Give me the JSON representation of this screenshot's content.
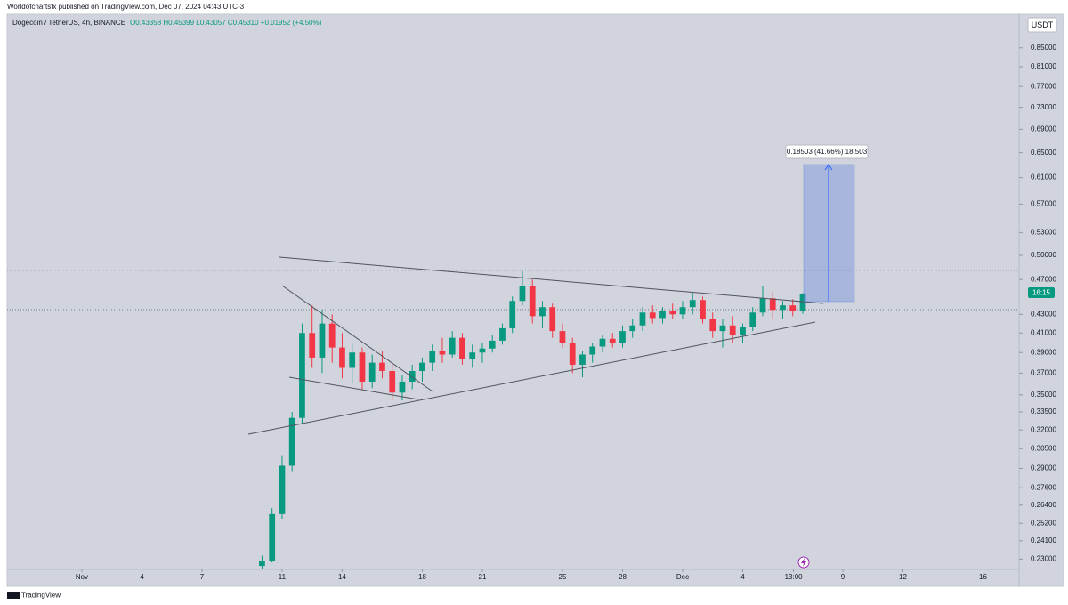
{
  "header": {
    "text": "Worldofchartsfx published on TradingView.com, Dec 07, 2024 04:43 UTC-3"
  },
  "footer": {
    "text": "TradingView"
  },
  "chart_data": {
    "type": "candlestick",
    "title": "Dogecoin / TetherUS, 4h, BINANCE",
    "subtitle": "O0.43358 H0.45399 L0.43057 C0.45310 +0.01952 (+4.50%)",
    "currency": "USDT",
    "countdown": "16:15",
    "annotations": [
      "0.18503 (41.66%) 18,503"
    ],
    "log_scale": true,
    "up_color": "#089981",
    "down_color": "#f23645",
    "xlim": [
      -2.73,
      47.8
    ],
    "ylim": [
      0.224,
      0.922
    ],
    "xticks": [
      {
        "value": 1,
        "label": "Nov"
      },
      4,
      7,
      11,
      14,
      18,
      21,
      25,
      28,
      {
        "value": 31,
        "label": "Dec"
      },
      {
        "value": 34,
        "label": "4"
      },
      {
        "value": 36.54,
        "label": "13:00"
      },
      {
        "value": 39,
        "label": "9"
      },
      {
        "value": 42,
        "label": "12"
      },
      {
        "value": 46,
        "label": "16"
      }
    ],
    "yticks": [
      {
        "value": 0.85,
        "label": "0.85000"
      },
      {
        "value": 0.81,
        "label": "0.81000"
      },
      {
        "value": 0.77,
        "label": "0.77000"
      },
      {
        "value": 0.73,
        "label": "0.73000"
      },
      {
        "value": 0.69,
        "label": "0.69000"
      },
      {
        "value": 0.65,
        "label": "0.65000"
      },
      {
        "value": 0.61,
        "label": "0.61000"
      },
      {
        "value": 0.57,
        "label": "0.57000"
      },
      {
        "value": 0.53,
        "label": "0.53000"
      },
      {
        "value": 0.5,
        "label": "0.50000"
      },
      {
        "value": 0.47,
        "label": "0.47000"
      },
      {
        "value": 0.43,
        "label": "0.43000"
      },
      {
        "value": 0.41,
        "label": "0.41000"
      },
      {
        "value": 0.39,
        "label": "0.39000"
      },
      {
        "value": 0.37,
        "label": "0.37000"
      },
      {
        "value": 0.35,
        "label": "0.35000"
      },
      {
        "value": 0.335,
        "label": "0.33500"
      },
      {
        "value": 0.32,
        "label": "0.32000"
      },
      {
        "value": 0.305,
        "label": "0.30500"
      },
      {
        "value": 0.29,
        "label": "0.29000"
      },
      {
        "value": 0.276,
        "label": "0.27600"
      },
      {
        "value": 0.264,
        "label": "0.26400"
      },
      {
        "value": 0.252,
        "label": "0.25200"
      },
      {
        "value": 0.241,
        "label": "0.24100"
      },
      {
        "value": 0.23,
        "label": "0.23000"
      }
    ],
    "x": [
      10,
      10.5,
      11,
      11.5,
      12,
      12.5,
      13,
      13.5,
      14,
      14.5,
      15,
      15.5,
      16,
      16.5,
      17,
      17.5,
      18,
      18.5,
      19,
      19.5,
      20,
      20.5,
      21,
      21.5,
      22,
      22.5,
      23,
      23.5,
      24,
      24.5,
      25,
      25.5,
      26,
      26.5,
      27,
      27.5,
      28,
      28.5,
      29,
      29.5,
      30,
      30.5,
      31,
      31.5,
      32,
      32.5,
      33,
      33.5,
      34,
      34.5,
      35,
      35.5,
      36,
      36.5,
      37
    ],
    "open": [
      0.226,
      0.229,
      0.258,
      0.292,
      0.33,
      0.41,
      0.385,
      0.42,
      0.395,
      0.375,
      0.39,
      0.362,
      0.38,
      0.372,
      0.352,
      0.362,
      0.372,
      0.38,
      0.392,
      0.388,
      0.405,
      0.384,
      0.39,
      0.394,
      0.402,
      0.415,
      0.445,
      0.462,
      0.428,
      0.438,
      0.412,
      0.4,
      0.378,
      0.388,
      0.396,
      0.404,
      0.4,
      0.412,
      0.418,
      0.432,
      0.426,
      0.434,
      0.43,
      0.438,
      0.446,
      0.425,
      0.412,
      0.418,
      0.408,
      0.416,
      0.432,
      0.448,
      0.435,
      0.44,
      0.43358
    ],
    "high": [
      0.232,
      0.262,
      0.3,
      0.335,
      0.42,
      0.44,
      0.435,
      0.43,
      0.41,
      0.4,
      0.395,
      0.388,
      0.392,
      0.378,
      0.368,
      0.378,
      0.385,
      0.398,
      0.405,
      0.412,
      0.41,
      0.398,
      0.4,
      0.408,
      0.42,
      0.45,
      0.48,
      0.47,
      0.445,
      0.442,
      0.42,
      0.405,
      0.392,
      0.4,
      0.408,
      0.41,
      0.418,
      0.425,
      0.438,
      0.44,
      0.438,
      0.442,
      0.445,
      0.455,
      0.45,
      0.432,
      0.425,
      0.428,
      0.42,
      0.438,
      0.462,
      0.455,
      0.445,
      0.447,
      0.45399
    ],
    "low": [
      0.224,
      0.228,
      0.255,
      0.288,
      0.325,
      0.375,
      0.37,
      0.38,
      0.365,
      0.36,
      0.355,
      0.356,
      0.365,
      0.345,
      0.345,
      0.355,
      0.362,
      0.372,
      0.38,
      0.385,
      0.378,
      0.375,
      0.38,
      0.39,
      0.398,
      0.41,
      0.44,
      0.42,
      0.415,
      0.405,
      0.395,
      0.37,
      0.366,
      0.38,
      0.39,
      0.395,
      0.395,
      0.405,
      0.412,
      0.42,
      0.42,
      0.425,
      0.425,
      0.43,
      0.42,
      0.405,
      0.395,
      0.4,
      0.4,
      0.412,
      0.428,
      0.425,
      0.425,
      0.428,
      0.43057
    ],
    "close": [
      0.229,
      0.258,
      0.292,
      0.33,
      0.41,
      0.385,
      0.42,
      0.395,
      0.375,
      0.39,
      0.362,
      0.38,
      0.372,
      0.352,
      0.362,
      0.372,
      0.38,
      0.392,
      0.388,
      0.405,
      0.384,
      0.39,
      0.394,
      0.402,
      0.415,
      0.445,
      0.462,
      0.428,
      0.438,
      0.412,
      0.4,
      0.378,
      0.388,
      0.396,
      0.404,
      0.4,
      0.412,
      0.418,
      0.432,
      0.426,
      0.434,
      0.43,
      0.438,
      0.446,
      0.425,
      0.412,
      0.418,
      0.408,
      0.416,
      0.432,
      0.448,
      0.435,
      0.44,
      0.43358,
      0.4531
    ]
  }
}
